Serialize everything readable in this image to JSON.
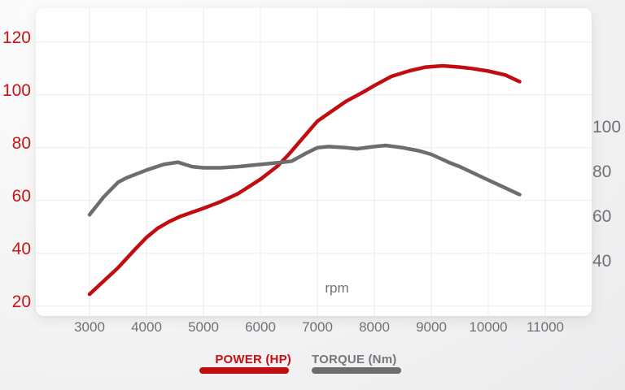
{
  "chart_data": {
    "type": "line",
    "xlabel": "rpm",
    "x_ticks": [
      3000,
      4000,
      5000,
      6000,
      7000,
      8000,
      9000,
      10000,
      11000
    ],
    "grid": true,
    "legend_position": "bottom",
    "left_axis": {
      "series": "POWER (HP)",
      "ticks": [
        120,
        100,
        80,
        60,
        40,
        20
      ],
      "min": 20,
      "max": 120,
      "color": "#cc1111"
    },
    "right_axis": {
      "series": "TORQUE (Nm)",
      "ticks": [
        100,
        80,
        60,
        40
      ],
      "min": 40,
      "max": 100,
      "color": "#6e7276"
    },
    "series": [
      {
        "name": "POWER (HP)",
        "axis": "left",
        "color": "#c20d10",
        "points": [
          [
            3000,
            24.5
          ],
          [
            3200,
            28.5
          ],
          [
            3500,
            34.5
          ],
          [
            3800,
            41.5
          ],
          [
            4000,
            46
          ],
          [
            4200,
            49.5
          ],
          [
            4400,
            52
          ],
          [
            4600,
            54
          ],
          [
            4800,
            55.5
          ],
          [
            5000,
            57
          ],
          [
            5300,
            59.5
          ],
          [
            5600,
            62.5
          ],
          [
            6000,
            68
          ],
          [
            6300,
            73
          ],
          [
            6500,
            77.5
          ],
          [
            6800,
            85
          ],
          [
            7000,
            90
          ],
          [
            7200,
            93
          ],
          [
            7500,
            97.5
          ],
          [
            7800,
            101
          ],
          [
            8000,
            103.5
          ],
          [
            8300,
            107
          ],
          [
            8600,
            109
          ],
          [
            8900,
            110.5
          ],
          [
            9200,
            111
          ],
          [
            9500,
            110.5
          ],
          [
            9700,
            110
          ],
          [
            10000,
            109
          ],
          [
            10300,
            107.5
          ],
          [
            10550,
            105
          ]
        ]
      },
      {
        "name": "TORQUE (Nm)",
        "axis": "right",
        "color": "#6d6d6d",
        "points": [
          [
            3000,
            61
          ],
          [
            3250,
            69
          ],
          [
            3500,
            75.5
          ],
          [
            3650,
            77.5
          ],
          [
            3800,
            79
          ],
          [
            4000,
            81
          ],
          [
            4300,
            83.5
          ],
          [
            4550,
            84.5
          ],
          [
            4800,
            82.5
          ],
          [
            5000,
            82
          ],
          [
            5300,
            82
          ],
          [
            5600,
            82.5
          ],
          [
            6000,
            83.5
          ],
          [
            6400,
            84.5
          ],
          [
            6550,
            85
          ],
          [
            6800,
            88.5
          ],
          [
            7000,
            91
          ],
          [
            7200,
            91.5
          ],
          [
            7500,
            91
          ],
          [
            7700,
            90.5
          ],
          [
            8000,
            91.5
          ],
          [
            8200,
            92
          ],
          [
            8500,
            91
          ],
          [
            8800,
            89.5
          ],
          [
            9000,
            88
          ],
          [
            9300,
            84.5
          ],
          [
            9500,
            82.5
          ],
          [
            10000,
            76.5
          ],
          [
            10300,
            73
          ],
          [
            10550,
            70
          ]
        ]
      }
    ]
  },
  "legend": {
    "power_label": "POWER (HP)",
    "power_color": "#cb0e10",
    "torque_label": "TORQUE (Nm)",
    "torque_color": "#75787a"
  },
  "style": {
    "gridline_color": "#ebebeb"
  }
}
